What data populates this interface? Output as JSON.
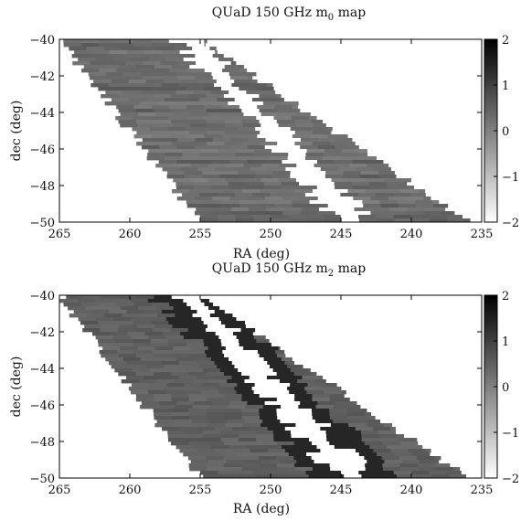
{
  "chart_data": [
    {
      "type": "heatmap",
      "title": "QUaD 150 GHz m",
      "title_subscript": "0",
      "title_suffix": " map",
      "xlabel": "RA (deg)",
      "ylabel": "dec (deg)",
      "xlim": [
        265,
        235
      ],
      "ylim": [
        -50,
        -40
      ],
      "x_ticks": [
        265,
        260,
        255,
        250,
        245,
        240,
        235
      ],
      "y_ticks": [
        -40,
        -42,
        -44,
        -46,
        -48,
        -50
      ],
      "colorbar": {
        "range": [
          -2,
          2
        ],
        "ticks": [
          2,
          1,
          0,
          -1,
          -2
        ],
        "colormap": "gray (white=-2, black=2)"
      },
      "map_features": {
        "coverage_band": "diagonal strip from RA~265..255 at dec -40 to RA~255..236 at dec -50",
        "masked_plane": "white saturated Galactic plane streak from RA~256 dec -40 to RA~244 dec -50",
        "background_level": 0.3,
        "horizontal_scan_striping": true
      }
    },
    {
      "type": "heatmap",
      "title": "QUaD 150 GHz m",
      "title_subscript": "2",
      "title_suffix": " map",
      "xlabel": "RA (deg)",
      "ylabel": "dec (deg)",
      "xlim": [
        265,
        235
      ],
      "ylim": [
        -50,
        -40
      ],
      "x_ticks": [
        265,
        260,
        255,
        250,
        245,
        240,
        235
      ],
      "y_ticks": [
        -40,
        -42,
        -44,
        -46,
        -48,
        -50
      ],
      "colorbar": {
        "range": [
          -2,
          2
        ],
        "ticks": [
          2,
          1,
          0,
          -1,
          -2
        ],
        "colormap": "gray (white=-2, black=2)"
      },
      "map_features": {
        "coverage_band": "diagonal strip from RA~265..255 at dec -40 to RA~255..236 at dec -50",
        "masked_plane": "white saturated Galactic plane streak from RA~256 dec -40 to RA~244 dec -50",
        "background_level": 0.5,
        "horizontal_scan_striping": false
      }
    }
  ]
}
